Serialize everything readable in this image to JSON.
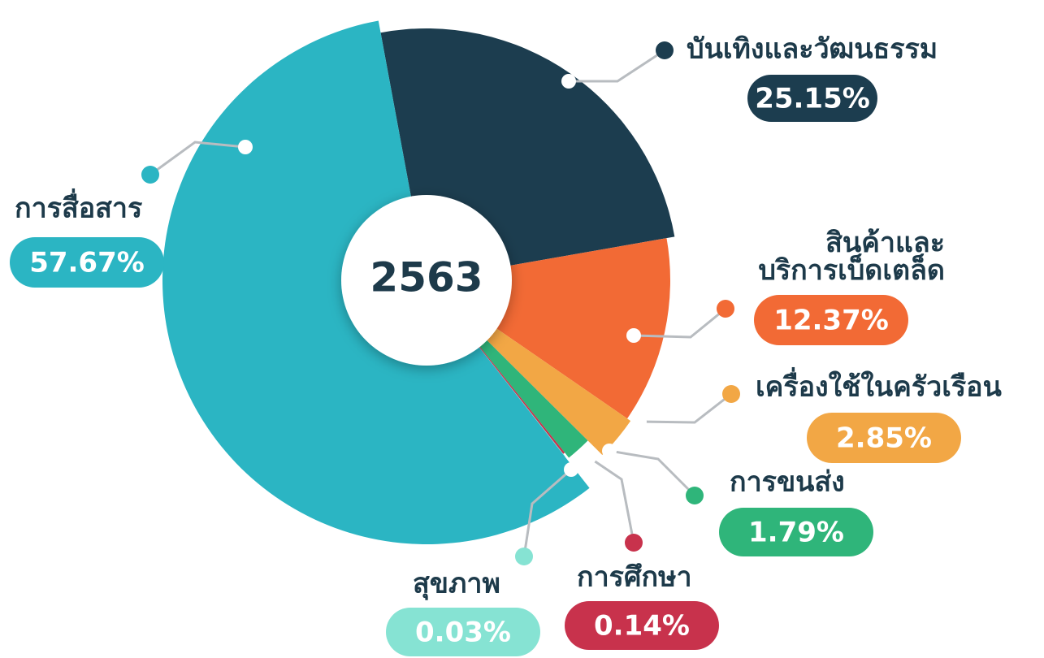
{
  "chart_data": {
    "type": "pie",
    "center_label": "2563",
    "categories": [
      "บันเทิงและวัฒนธรรม",
      "สินค้าและ\nบริการเบ็ดเตล็ด",
      "เครื่องใช้ในครัวเรือน",
      "การขนส่ง",
      "การศึกษา",
      "สุขภาพ",
      "การสื่อสาร"
    ],
    "values": [
      25.15,
      12.37,
      2.85,
      1.79,
      0.14,
      0.03,
      57.67
    ],
    "value_labels": [
      "25.15%",
      "12.37%",
      "2.85%",
      "1.79%",
      "0.14%",
      "0.03%",
      "57.67%"
    ],
    "colors": [
      "#1c3d4f",
      "#f26a35",
      "#f2a745",
      "#2fb57a",
      "#c8324c",
      "#86e3d3",
      "#2bb5c3"
    ]
  }
}
